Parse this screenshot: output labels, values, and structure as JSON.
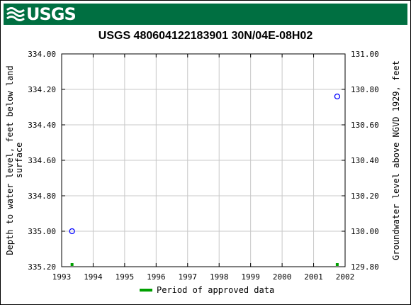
{
  "agency": {
    "logo_text": "USGS",
    "banner_color": "#006f41"
  },
  "chart_data": {
    "type": "scatter",
    "title": "USGS 480604122183901 30N/04E-08H02",
    "ylabel_left": "Depth to water level, feet below land surface",
    "ylabel_left_lines": [
      "Depth to water level, feet below land",
      "surface"
    ],
    "ylabel_right": "Groundwater level above NGVD 1929, feet",
    "xlim": [
      1993,
      2002
    ],
    "ylim_left": [
      334.0,
      335.2
    ],
    "ylim_right": [
      131.0,
      129.8
    ],
    "x_ticks": [
      "1993",
      "1994",
      "1995",
      "1996",
      "1997",
      "1998",
      "1999",
      "2000",
      "2001",
      "2002"
    ],
    "y_ticks_left": [
      "334.00",
      "334.20",
      "334.40",
      "334.60",
      "334.80",
      "335.00",
      "335.20"
    ],
    "y_ticks_right": [
      "131.00",
      "130.80",
      "130.60",
      "130.40",
      "130.20",
      "130.00",
      "129.80"
    ],
    "grid": true,
    "series": [
      {
        "marker": "open-circle",
        "color": "#0000ff",
        "points": [
          {
            "x": 1993.33,
            "y": 335.0
          },
          {
            "x": 2001.75,
            "y": 334.24
          }
        ]
      }
    ],
    "approved_periods": [
      {
        "x": 1993.33
      },
      {
        "x": 2001.75
      }
    ],
    "approved_color": "#00a000",
    "legend": {
      "label": "Period of approved data",
      "position": "bottom"
    }
  }
}
